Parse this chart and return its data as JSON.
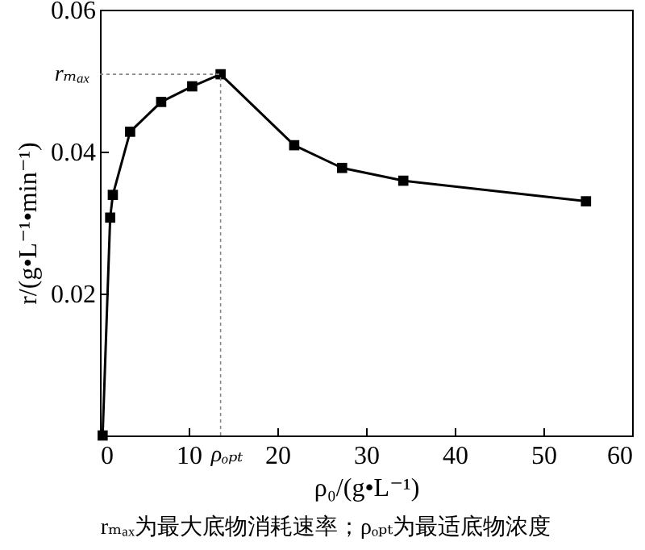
{
  "chart_data": {
    "type": "line",
    "xlabel": "ρ₀/(g•L⁻¹)",
    "ylabel": "r/(g•L⁻¹•min⁻¹)",
    "x": [
      0.3,
      1.15,
      1.45,
      3.4,
      6.9,
      10.4,
      13.6,
      21.9,
      27.3,
      34.2,
      54.8
    ],
    "series": [
      {
        "color": "#000000",
        "values": [
          0,
          0.0307,
          0.0339,
          0.0428,
          0.047,
          0.0492,
          0.0509,
          0.0409,
          0.0377,
          0.0359,
          0.033
        ]
      }
    ],
    "xlim": [
      0,
      60
    ],
    "xticks": [
      0,
      10,
      20,
      30,
      40,
      50,
      60
    ],
    "ylim": [
      0,
      0.06
    ],
    "yticks": [
      {
        "value": 0,
        "label": null
      },
      0.02,
      0.04,
      0.06
    ],
    "marker": "square",
    "line_style": "solid",
    "ref_lines": [
      {
        "axis": "y",
        "value": 0.0509,
        "label": "rₘₐₓ",
        "color": "#888888",
        "line_style": "dotted"
      },
      {
        "axis": "x",
        "value": 13.6,
        "label": "ρₒₚₜ",
        "color": "#888888",
        "line_style": "dotted"
      }
    ],
    "annotations": [
      "rₘₐₓ为最大底物消耗速率；ρₒₚₜ为最适底物浓度"
    ]
  }
}
